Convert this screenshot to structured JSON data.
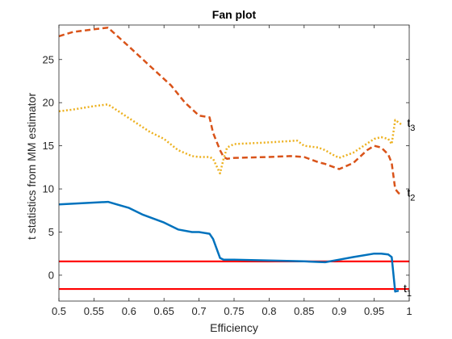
{
  "chart_data": {
    "type": "line",
    "title": "Fan plot",
    "xlabel": "Efficiency",
    "ylabel": "t statistics from MM estimator",
    "xlim": [
      0.5,
      1.0
    ],
    "ylim": [
      -3,
      29
    ],
    "xticks": [
      0.5,
      0.55,
      0.6,
      0.65,
      0.7,
      0.75,
      0.8,
      0.85,
      0.9,
      0.95,
      1
    ],
    "xtick_labels": [
      "0.5",
      "0.55",
      "0.6",
      "0.65",
      "0.7",
      "0.75",
      "0.8",
      "0.85",
      "0.9",
      "0.95",
      "1"
    ],
    "yticks": [
      0,
      5,
      10,
      15,
      20,
      25
    ],
    "ytick_labels": [
      "0",
      "5",
      "10",
      "15",
      "20",
      "25"
    ],
    "grid": false,
    "series": [
      {
        "name": "t",
        "subscript": "1",
        "color": "#0072BD",
        "style": "solid",
        "x": [
          0.5,
          0.57,
          0.6,
          0.62,
          0.65,
          0.67,
          0.69,
          0.7,
          0.715,
          0.72,
          0.73,
          0.735,
          0.75,
          0.8,
          0.85,
          0.88,
          0.9,
          0.92,
          0.95,
          0.96,
          0.97,
          0.975,
          0.98,
          0.985
        ],
        "values": [
          8.2,
          8.5,
          7.8,
          7.0,
          6.1,
          5.3,
          5.0,
          5.0,
          4.8,
          4.2,
          2.0,
          1.8,
          1.8,
          1.7,
          1.6,
          1.5,
          1.8,
          2.1,
          2.5,
          2.5,
          2.4,
          2.1,
          -1.9,
          -1.8
        ]
      },
      {
        "name": "t",
        "subscript": "2",
        "color": "#D95319",
        "style": "dashed",
        "x": [
          0.5,
          0.52,
          0.55,
          0.57,
          0.6,
          0.62,
          0.64,
          0.66,
          0.68,
          0.7,
          0.715,
          0.72,
          0.73,
          0.735,
          0.74,
          0.75,
          0.8,
          0.83,
          0.85,
          0.87,
          0.88,
          0.89,
          0.9,
          0.92,
          0.94,
          0.95,
          0.96,
          0.97,
          0.975,
          0.98,
          0.985,
          0.99
        ],
        "values": [
          27.7,
          28.2,
          28.5,
          28.7,
          26.5,
          25.0,
          23.5,
          22.0,
          20.0,
          18.5,
          18.3,
          16.5,
          14.5,
          13.7,
          13.5,
          13.6,
          13.7,
          13.8,
          13.7,
          13.1,
          12.9,
          12.6,
          12.3,
          13.0,
          14.5,
          15.0,
          14.8,
          14.0,
          13.0,
          10.0,
          9.5,
          9.3
        ]
      },
      {
        "name": "t",
        "subscript": "3",
        "color": "#EDB120",
        "style": "dotted",
        "x": [
          0.5,
          0.52,
          0.55,
          0.57,
          0.6,
          0.63,
          0.65,
          0.67,
          0.69,
          0.7,
          0.715,
          0.72,
          0.73,
          0.735,
          0.74,
          0.75,
          0.8,
          0.84,
          0.85,
          0.87,
          0.88,
          0.89,
          0.9,
          0.92,
          0.95,
          0.96,
          0.97,
          0.975,
          0.98,
          0.99
        ],
        "values": [
          19.0,
          19.2,
          19.6,
          19.8,
          18.2,
          16.6,
          15.8,
          14.5,
          13.8,
          13.7,
          13.7,
          13.5,
          11.8,
          13.5,
          14.8,
          15.2,
          15.4,
          15.6,
          15.0,
          14.8,
          14.5,
          14.0,
          13.6,
          14.2,
          15.8,
          16.0,
          15.8,
          15.2,
          18.0,
          17.4
        ]
      }
    ],
    "reference_lines": {
      "color": "#FF0000",
      "values": [
        1.6,
        -1.6
      ]
    }
  }
}
